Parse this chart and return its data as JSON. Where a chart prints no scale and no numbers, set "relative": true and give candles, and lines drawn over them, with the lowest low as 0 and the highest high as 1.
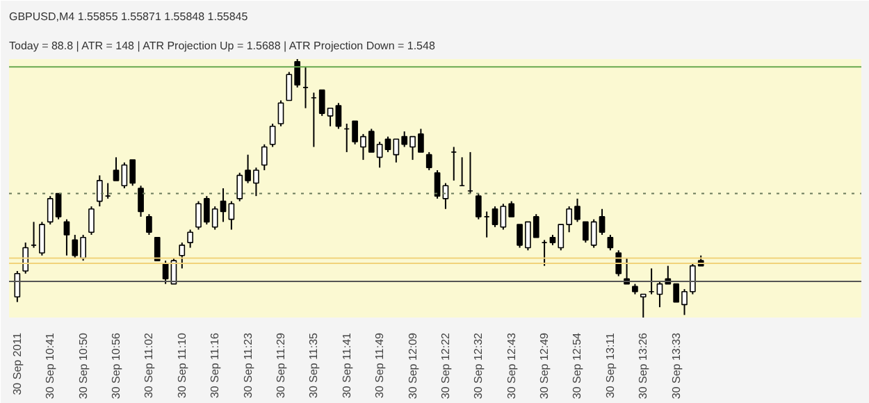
{
  "chart_data": {
    "type": "candlestick",
    "relative": true,
    "title": "GBPUSD,M4 1.55855 1.55871 1.55848 1.55845",
    "subtitle": "Today = 88.8 | ATR = 148 | ATR Projection Up = 1.5688 | ATR Projection Down = 1.548",
    "categories": [
      "30 Sep 2011",
      null,
      null,
      null,
      "30 Sep 10:41",
      null,
      null,
      null,
      "30 Sep 10:50",
      null,
      null,
      null,
      "30 Sep 10:56",
      null,
      null,
      null,
      "30 Sep 11:02",
      null,
      null,
      null,
      "30 Sep 11:10",
      null,
      null,
      null,
      "30 Sep 11:16",
      null,
      null,
      null,
      "30 Sep 11:23",
      null,
      null,
      null,
      "30 Sep 11:29",
      null,
      null,
      null,
      "30 Sep 11:35",
      null,
      null,
      null,
      "30 Sep 11:41",
      null,
      null,
      null,
      "30 Sep 11:49",
      null,
      null,
      null,
      "30 Sep 12:09",
      null,
      null,
      null,
      "30 Sep 12:22",
      null,
      null,
      null,
      "30 Sep 12:32",
      null,
      null,
      null,
      "30 Sep 12:43",
      null,
      null,
      null,
      "30 Sep 12:49",
      null,
      null,
      null,
      "30 Sep 12:54",
      null,
      null,
      null,
      "30 Sep 13:11",
      null,
      null,
      null,
      "30 Sep 13:26",
      null,
      null,
      null,
      "30 Sep 13:33",
      null,
      null,
      null
    ],
    "ohlc": [
      [
        0.08,
        0.18,
        0.06,
        0.17
      ],
      [
        0.18,
        0.29,
        0.17,
        0.27
      ],
      [
        0.28,
        0.37,
        0.27,
        0.28
      ],
      [
        0.25,
        0.37,
        0.24,
        0.36
      ],
      [
        0.37,
        0.47,
        0.36,
        0.46
      ],
      [
        0.48,
        0.48,
        0.38,
        0.39
      ],
      [
        0.37,
        0.38,
        0.24,
        0.32
      ],
      [
        0.3,
        0.32,
        0.23,
        0.24
      ],
      [
        0.23,
        0.32,
        0.22,
        0.31
      ],
      [
        0.33,
        0.43,
        0.32,
        0.42
      ],
      [
        0.45,
        0.55,
        0.43,
        0.53
      ],
      [
        0.47,
        0.52,
        0.46,
        0.47
      ],
      [
        0.57,
        0.62,
        0.53,
        0.53
      ],
      [
        0.51,
        0.6,
        0.5,
        0.59
      ],
      [
        0.61,
        0.61,
        0.51,
        0.52
      ],
      [
        0.5,
        0.51,
        0.39,
        0.41
      ],
      [
        0.39,
        0.4,
        0.32,
        0.33
      ],
      [
        0.31,
        0.31,
        0.22,
        0.22
      ],
      [
        0.21,
        0.22,
        0.13,
        0.15
      ],
      [
        0.13,
        0.23,
        0.13,
        0.22
      ],
      [
        0.24,
        0.29,
        0.19,
        0.28
      ],
      [
        0.29,
        0.34,
        0.27,
        0.33
      ],
      [
        0.35,
        0.45,
        0.34,
        0.44
      ],
      [
        0.46,
        0.47,
        0.36,
        0.37
      ],
      [
        0.35,
        0.43,
        0.34,
        0.42
      ],
      [
        0.45,
        0.5,
        0.37,
        0.41
      ],
      [
        0.38,
        0.45,
        0.34,
        0.44
      ],
      [
        0.46,
        0.56,
        0.45,
        0.55
      ],
      [
        0.57,
        0.63,
        0.52,
        0.53
      ],
      [
        0.52,
        0.58,
        0.47,
        0.57
      ],
      [
        0.59,
        0.67,
        0.57,
        0.66
      ],
      [
        0.67,
        0.75,
        0.66,
        0.74
      ],
      [
        0.75,
        0.84,
        0.74,
        0.83
      ],
      [
        0.84,
        0.95,
        0.84,
        0.94
      ],
      [
        0.99,
        1.0,
        0.89,
        0.9
      ],
      [
        0.89,
        0.97,
        0.81,
        0.89
      ],
      [
        0.85,
        0.87,
        0.66,
        0.85
      ],
      [
        0.88,
        0.88,
        0.78,
        0.79
      ],
      [
        0.78,
        0.81,
        0.74,
        0.81
      ],
      [
        0.82,
        0.83,
        0.73,
        0.74
      ],
      [
        0.73,
        0.75,
        0.64,
        0.73
      ],
      [
        0.76,
        0.76,
        0.67,
        0.68
      ],
      [
        0.66,
        0.71,
        0.61,
        0.7
      ],
      [
        0.72,
        0.73,
        0.64,
        0.64
      ],
      [
        0.62,
        0.68,
        0.58,
        0.67
      ],
      [
        0.69,
        0.7,
        0.64,
        0.65
      ],
      [
        0.63,
        0.69,
        0.6,
        0.69
      ],
      [
        0.7,
        0.72,
        0.66,
        0.67
      ],
      [
        0.66,
        0.7,
        0.61,
        0.7
      ],
      [
        0.71,
        0.73,
        0.64,
        0.64
      ],
      [
        0.63,
        0.64,
        0.57,
        0.58
      ],
      [
        0.56,
        0.57,
        0.46,
        0.47
      ],
      [
        0.46,
        0.52,
        0.42,
        0.51
      ],
      [
        0.64,
        0.66,
        0.53,
        0.64
      ],
      [
        0.51,
        0.62,
        0.51,
        0.51
      ],
      [
        0.49,
        0.64,
        0.48,
        0.49
      ],
      [
        0.47,
        0.48,
        0.38,
        0.39
      ],
      [
        0.39,
        0.41,
        0.31,
        0.39
      ],
      [
        0.42,
        0.43,
        0.35,
        0.36
      ],
      [
        0.35,
        0.44,
        0.34,
        0.43
      ],
      [
        0.44,
        0.45,
        0.39,
        0.39
      ],
      [
        0.36,
        0.36,
        0.27,
        0.28
      ],
      [
        0.27,
        0.37,
        0.26,
        0.37
      ],
      [
        0.39,
        0.4,
        0.31,
        0.31
      ],
      [
        0.29,
        0.3,
        0.2,
        0.29
      ],
      [
        0.31,
        0.32,
        0.28,
        0.29
      ],
      [
        0.27,
        0.36,
        0.26,
        0.36
      ],
      [
        0.36,
        0.43,
        0.33,
        0.42
      ],
      [
        0.43,
        0.46,
        0.37,
        0.38
      ],
      [
        0.37,
        0.37,
        0.29,
        0.3
      ],
      [
        0.28,
        0.38,
        0.27,
        0.37
      ],
      [
        0.39,
        0.42,
        0.32,
        0.33
      ],
      [
        0.31,
        0.32,
        0.26,
        0.27
      ],
      [
        0.25,
        0.26,
        0.16,
        0.17
      ],
      [
        0.15,
        0.23,
        0.13,
        0.13
      ],
      [
        0.12,
        0.13,
        0.09,
        0.1
      ],
      [
        0.08,
        0.09,
        0.0,
        0.09
      ],
      [
        0.1,
        0.19,
        0.09,
        0.1
      ],
      [
        0.09,
        0.14,
        0.04,
        0.13
      ],
      [
        0.15,
        0.2,
        0.13,
        0.13
      ],
      [
        0.13,
        0.13,
        0.06,
        0.06
      ],
      [
        0.05,
        0.11,
        0.01,
        0.1
      ],
      [
        0.1,
        0.21,
        0.09,
        0.2
      ],
      [
        0.22,
        0.24,
        0.2,
        0.2
      ]
    ],
    "ref_lines": [
      {
        "axis": "y",
        "value": 0.97,
        "color": "#6aa84f",
        "line_style": "solid"
      },
      {
        "axis": "y",
        "value": 0.48,
        "color": "#6b7b5a",
        "line_style": "dotted"
      },
      {
        "axis": "y",
        "value": 0.23,
        "color": "#f1d37a",
        "line_style": "solid"
      },
      {
        "axis": "y",
        "value": 0.21,
        "color": "#f1d37a",
        "line_style": "solid"
      },
      {
        "axis": "y",
        "value": 0.14,
        "color": "#555555",
        "line_style": "solid"
      }
    ],
    "grid": false
  }
}
